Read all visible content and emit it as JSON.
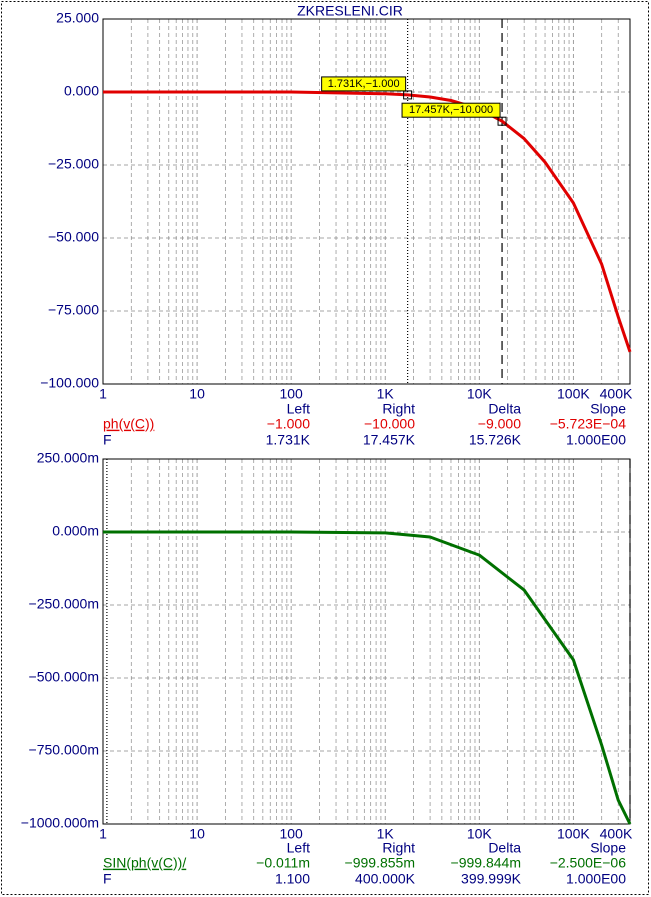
{
  "chart_data": [
    {
      "type": "line",
      "title": "ZKRESLENI.CIR",
      "xscale": "log",
      "x": [
        1,
        10,
        100,
        1000,
        1731,
        3000,
        5000,
        10000,
        17457,
        30000,
        50000,
        100000,
        200000,
        300000,
        400000
      ],
      "series": [
        {
          "name": "ph(v(C))",
          "color": "#e00000",
          "values": [
            0,
            0,
            0,
            -0.6,
            -1,
            -1.7,
            -2.9,
            -5.8,
            -10,
            -16,
            -24,
            -38,
            -59,
            -77,
            -89
          ]
        }
      ],
      "xlim": [
        1,
        400000
      ],
      "xticks": [
        1,
        10,
        100,
        {
          "value": 1000,
          "label": "1K"
        },
        {
          "value": 10000,
          "label": "10K"
        },
        {
          "value": 100000,
          "label": "100K"
        },
        {
          "value": 400000,
          "label": "400K"
        }
      ],
      "ylim": [
        -100,
        25
      ],
      "yticks": [
        {
          "value": 25,
          "label": "25.000"
        },
        {
          "value": 0,
          "label": "0.000"
        },
        {
          "value": -25,
          "label": "−25.000"
        },
        {
          "value": -50,
          "label": "−50.000"
        },
        {
          "value": -75,
          "label": "−75.000"
        },
        {
          "value": -100,
          "label": "−100.000"
        }
      ],
      "grid": true,
      "cursors": [
        1731,
        17457
      ],
      "annotations": [
        {
          "x": 1731,
          "y": -1,
          "label": "1.731K,−1.000"
        },
        {
          "x": 17457,
          "y": -10,
          "label": "17.457K,−10.000"
        }
      ],
      "cursor_table": {
        "columns": [
          "Left",
          "Right",
          "Delta",
          "Slope"
        ],
        "rows": [
          {
            "label": "ph(v(C))",
            "color": "#e00000",
            "cells": [
              "−1.000",
              "−10.000",
              "−9.000",
              "−5.723E−04"
            ]
          },
          {
            "label": "F",
            "color": "#000080",
            "cells": [
              "1.731K",
              "17.457K",
              "15.726K",
              "1.000E00"
            ]
          }
        ]
      }
    },
    {
      "type": "line",
      "xscale": "log",
      "x": [
        1,
        10,
        100,
        1000,
        3000,
        10000,
        30000,
        50000,
        100000,
        200000,
        300000,
        400000
      ],
      "series": [
        {
          "name": "SIN(ph(v(C))/",
          "color": "#007000",
          "values": [
            0,
            0,
            0,
            -3,
            -17,
            -79,
            -199,
            -300,
            -438,
            -730,
            -918,
            -999.855
          ]
        }
      ],
      "xlim": [
        1,
        400000
      ],
      "xticks": [
        1,
        10,
        100,
        {
          "value": 1000,
          "label": "1K"
        },
        {
          "value": 10000,
          "label": "10K"
        },
        {
          "value": 100000,
          "label": "100K"
        },
        {
          "value": 400000,
          "label": "400K"
        }
      ],
      "ylim": [
        -1000,
        250
      ],
      "yticks": [
        {
          "value": 250,
          "label": "250.000m"
        },
        {
          "value": 0,
          "label": "0.000m"
        },
        {
          "value": -250,
          "label": "−250.000m"
        },
        {
          "value": -500,
          "label": "−500.000m"
        },
        {
          "value": -750,
          "label": "−750.000m"
        },
        {
          "value": -1000,
          "label": "−1000.000m"
        }
      ],
      "grid": true,
      "cursors": [
        1.1,
        400000
      ],
      "cursor_table": {
        "columns": [
          "Left",
          "Right",
          "Delta",
          "Slope"
        ],
        "rows": [
          {
            "label": "SIN(ph(v(C))/",
            "color": "#007000",
            "cells": [
              "−0.011m",
              "−999.855m",
              "−999.844m",
              "−2.500E−06"
            ]
          },
          {
            "label": "F",
            "color": "#000080",
            "cells": [
              "1.100",
              "400.000K",
              "399.999K",
              "1.000E00"
            ]
          }
        ]
      }
    }
  ]
}
